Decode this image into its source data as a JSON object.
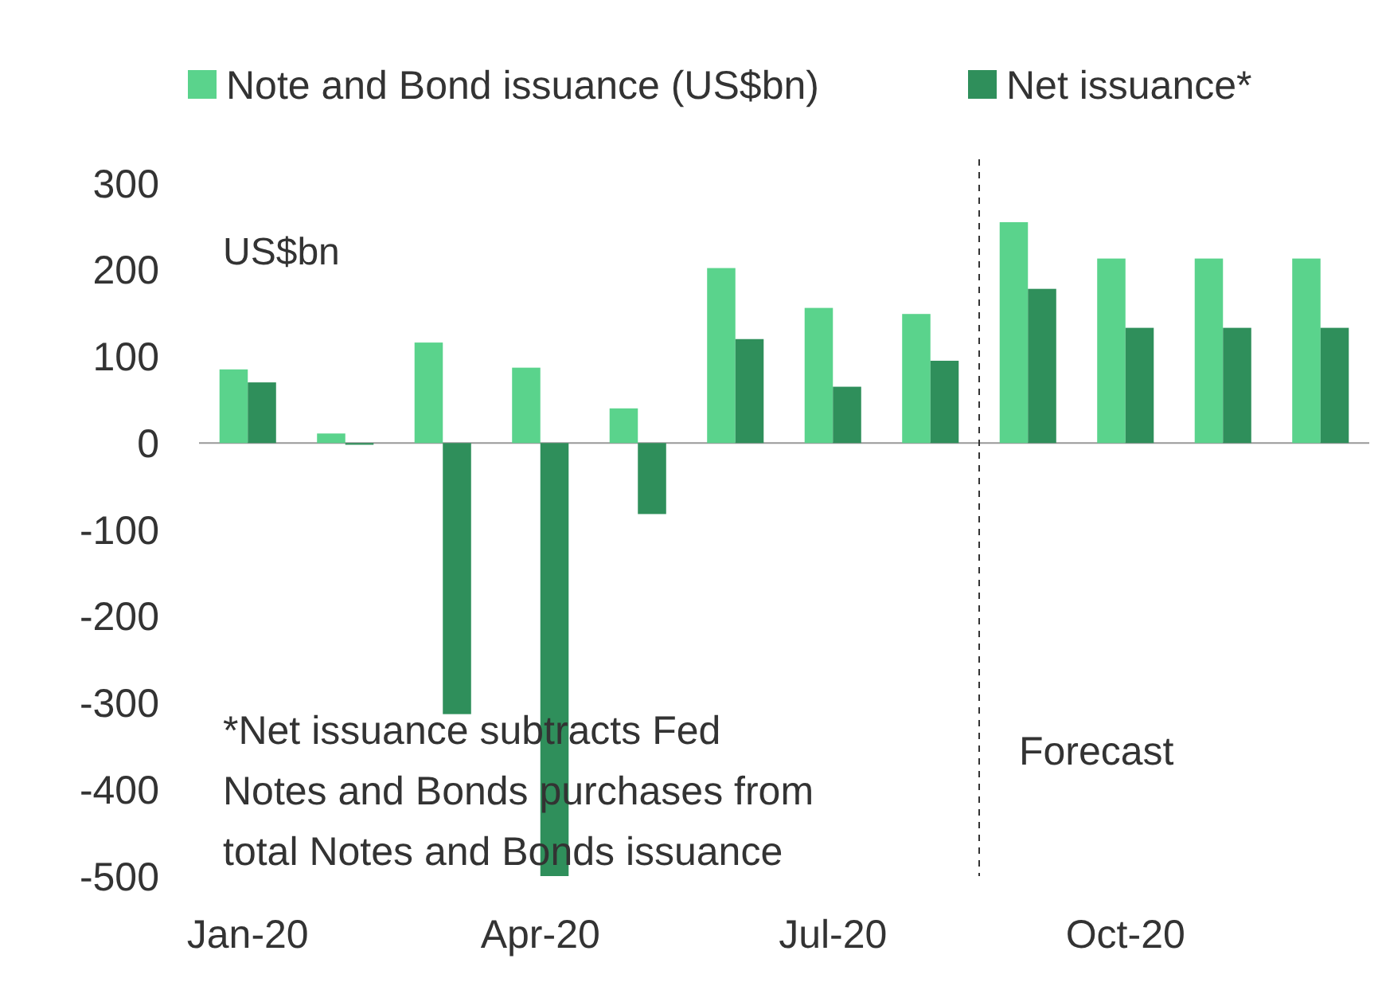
{
  "chart_data": {
    "type": "bar",
    "ylabel": "US$bn",
    "categories": [
      "Jan-20",
      null,
      null,
      "Apr-20",
      null,
      null,
      "Jul-20",
      null,
      null,
      "Oct-20",
      null,
      null
    ],
    "series": [
      {
        "name": "Note and Bond issuance (US$bn)",
        "color": "#5ad38c",
        "values": [
          85,
          11,
          116,
          87,
          40,
          202,
          156,
          149,
          255,
          213,
          213,
          213
        ]
      },
      {
        "name": "Net issuance*",
        "color": "#2f8f5b",
        "values": [
          70,
          -2,
          -313,
          -500,
          -82,
          120,
          65,
          95,
          178,
          133,
          133,
          133
        ]
      }
    ],
    "ylim": [
      -500,
      300
    ],
    "yticks": [
      -500,
      -400,
      -300,
      -200,
      -100,
      0,
      100,
      200,
      300
    ],
    "grid": false,
    "legend": "top",
    "annotations": [
      "*Net issuance subtracts Fed Notes and Bonds purchases from total Notes and Bonds issuance",
      "Forecast"
    ]
  }
}
